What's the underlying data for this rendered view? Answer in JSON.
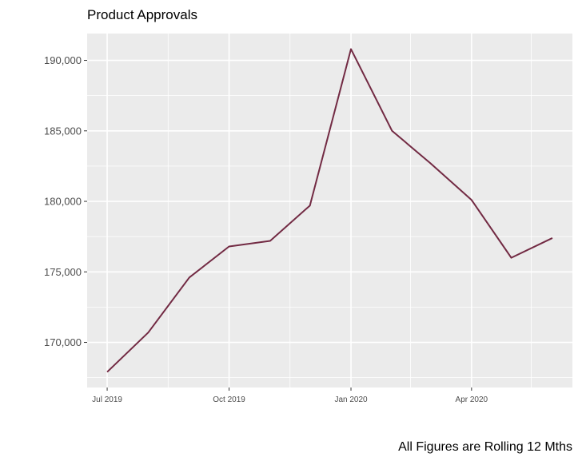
{
  "chart_data": {
    "type": "line",
    "title": "Product Approvals",
    "caption": "All Figures are Rolling 12 Mths",
    "xlabel": "",
    "ylabel": "",
    "x": [
      "2019-07",
      "2019-08",
      "2019-09",
      "2019-10",
      "2019-11",
      "2019-12",
      "2020-01",
      "2020-02",
      "2020-03",
      "2020-04",
      "2020-05",
      "2020-06"
    ],
    "values": [
      167900,
      170700,
      174600,
      176800,
      177200,
      179700,
      190800,
      185000,
      182700,
      180100,
      176000,
      177400
    ],
    "ylim": [
      166800,
      191900
    ],
    "y_ticks": [
      170000,
      175000,
      180000,
      185000,
      190000
    ],
    "y_tick_labels": [
      "170,000",
      "175,000",
      "180,000",
      "185,000",
      "190,000"
    ],
    "x_ticks": [
      "2019-07",
      "2019-10",
      "2020-01",
      "2020-04"
    ],
    "x_tick_labels": [
      "Jul 2019",
      "Oct 2019",
      "Jan 2020",
      "Apr 2020"
    ],
    "x_minor_ticks": [
      "2019-08-16",
      "2019-11-16",
      "2020-02-15",
      "2020-05-16"
    ],
    "grid": true,
    "legend": "none",
    "colors": {
      "line": "#722a43",
      "panel": "#ebebeb",
      "grid": "#ffffff",
      "tick_text": "#4d4d4d"
    }
  }
}
